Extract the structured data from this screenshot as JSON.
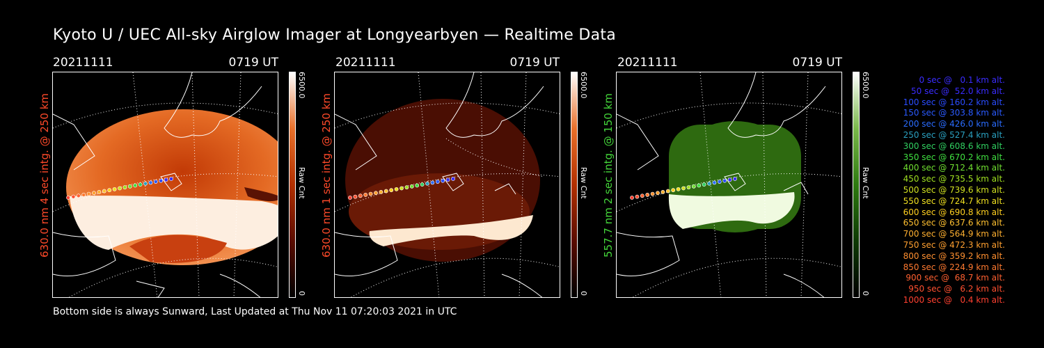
{
  "title": "Kyoto U / UEC All-sky Airglow Imager at Longyearbyen — Realtime Data",
  "footer": "Bottom side is always Sunward, Last Updated at Thu Nov 11 07:20:03 2021 in UTC",
  "panels": [
    {
      "date": "20211111",
      "time": "0719 UT",
      "ylabel": "630.0 nm 4 sec intg. @ 250 km",
      "ylabel_color": "#ff4a2a",
      "cbar_max": "6500.0",
      "cbar_min": "0",
      "cbar_label": "Raw Cnt",
      "colormap": "red"
    },
    {
      "date": "20211111",
      "time": "0719 UT",
      "ylabel": "630.0 nm 1 sec intg. @ 250 km",
      "ylabel_color": "#ff4a2a",
      "cbar_max": "6500.0",
      "cbar_min": "0",
      "cbar_label": "Raw Cnt",
      "colormap": "dark-red"
    },
    {
      "date": "20211111",
      "time": "0719 UT",
      "ylabel": "557.7 nm 2 sec intg. @ 150 km",
      "ylabel_color": "#44d63a",
      "cbar_max": "6500.0",
      "cbar_min": "0",
      "cbar_label": "Raw Cnt",
      "colormap": "green"
    }
  ],
  "legend": [
    {
      "text": "0 sec @   0.1 km alt.",
      "color": "#3a2cff"
    },
    {
      "text": "50 sec @  52.0 km alt.",
      "color": "#3a2cff"
    },
    {
      "text": "100 sec @ 160.2 km alt.",
      "color": "#2a4cff"
    },
    {
      "text": "150 sec @ 303.8 km alt.",
      "color": "#2a5aff"
    },
    {
      "text": "200 sec @ 426.0 km alt.",
      "color": "#2a6cff"
    },
    {
      "text": "250 sec @ 527.4 km alt.",
      "color": "#2aa0c0"
    },
    {
      "text": "300 sec @ 608.6 km alt.",
      "color": "#30d060"
    },
    {
      "text": "350 sec @ 670.2 km alt.",
      "color": "#40e040"
    },
    {
      "text": "400 sec @ 712.4 km alt.",
      "color": "#70e030"
    },
    {
      "text": "450 sec @ 735.5 km alt.",
      "color": "#a0e020"
    },
    {
      "text": "500 sec @ 739.6 km alt.",
      "color": "#d0e020"
    },
    {
      "text": "550 sec @ 724.7 km alt.",
      "color": "#f0e020"
    },
    {
      "text": "600 sec @ 690.8 km alt.",
      "color": "#ffd020"
    },
    {
      "text": "650 sec @ 637.6 km alt.",
      "color": "#ffc030"
    },
    {
      "text": "700 sec @ 564.9 km alt.",
      "color": "#ffb030"
    },
    {
      "text": "750 sec @ 472.3 km alt.",
      "color": "#ffa030"
    },
    {
      "text": "800 sec @ 359.2 km alt.",
      "color": "#ff9030"
    },
    {
      "text": "850 sec @ 224.9 km alt.",
      "color": "#ff7a30"
    },
    {
      "text": "900 sec @  68.7 km alt.",
      "color": "#ff6030"
    },
    {
      "text": "950 sec @   6.2 km alt.",
      "color": "#ff5030"
    },
    {
      "text": "1000 sec @   0.4 km alt.",
      "color": "#ff4030"
    }
  ]
}
